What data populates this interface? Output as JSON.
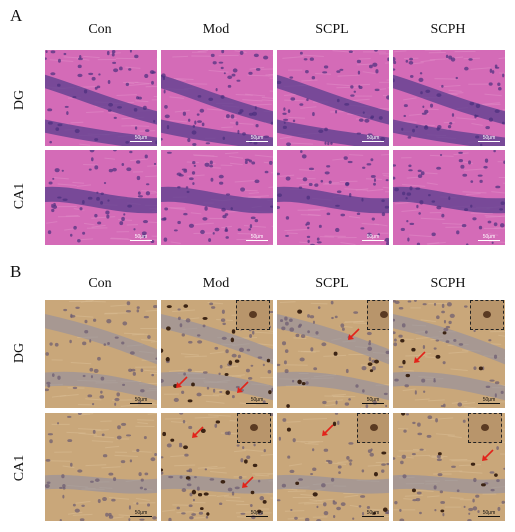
{
  "panels": {
    "A": {
      "letter": "A"
    },
    "B": {
      "letter": "B"
    }
  },
  "columns": [
    "Con",
    "Mod",
    "SCPL",
    "SCPH"
  ],
  "rows": [
    "DG",
    "CA1"
  ],
  "scale_bar_label": "50μm",
  "colors": {
    "he_background": "#d46bb7",
    "he_nuclei": "#5a3e8e",
    "ihc_background": "#c9a77a",
    "ihc_nuclei": "#8a8ca6",
    "arrow": "#e2231a"
  }
}
